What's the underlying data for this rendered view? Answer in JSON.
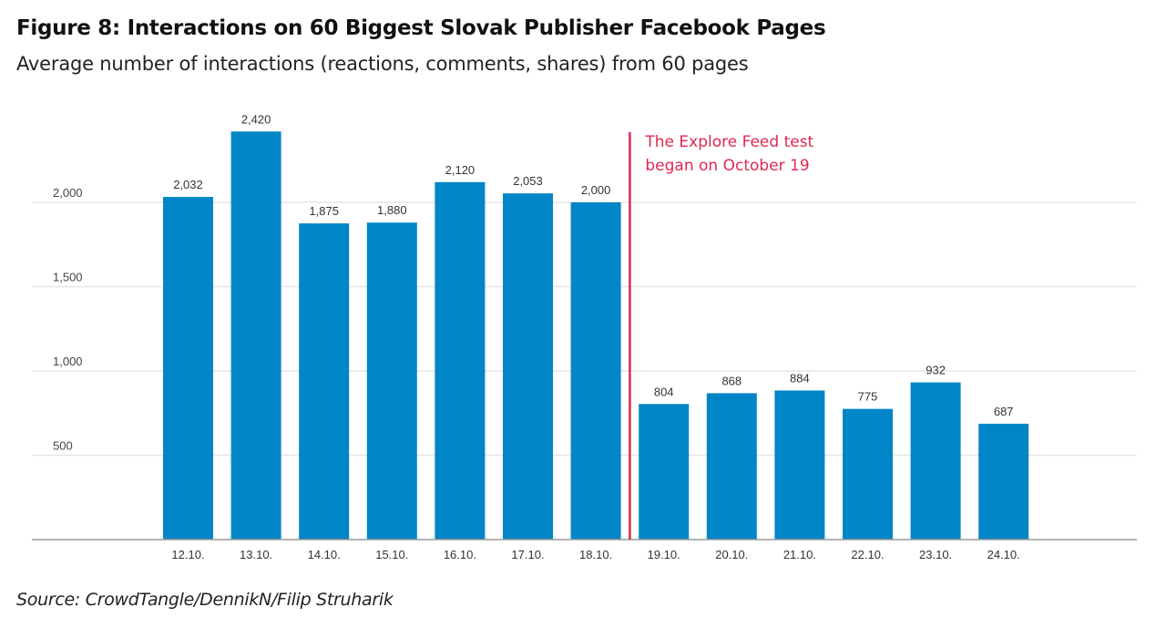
{
  "title": "Figure 8: Interactions on 60 Biggest Slovak Publisher Facebook Pages",
  "subtitle": "Average number of interactions (reactions, comments, shares) from 60 pages",
  "source": "Source: CrowdTangle/DennikN/Filip Struharik",
  "chart_data": {
    "type": "bar",
    "title": "Figure 8: Interactions on 60 Biggest Slovak Publisher Facebook Pages",
    "subtitle": "Average number of interactions (reactions, comments, shares) from 60 pages",
    "categories": [
      "12.10.",
      "13.10.",
      "14.10.",
      "15.10.",
      "16.10.",
      "17.10.",
      "18.10.",
      "19.10.",
      "20.10.",
      "21.10.",
      "22.10.",
      "23.10.",
      "24.10."
    ],
    "values": [
      2032,
      2420,
      1875,
      1880,
      2120,
      2053,
      2000,
      804,
      868,
      884,
      775,
      932,
      687
    ],
    "data_labels": [
      "2,032",
      "2,420",
      "1,875",
      "1,880",
      "2,120",
      "2,053",
      "2,000",
      "804",
      "868",
      "884",
      "775",
      "932",
      "687"
    ],
    "yticks": [
      500,
      1000,
      1500,
      2000
    ],
    "ytick_labels": [
      "500",
      "1,000",
      "1,500",
      "2,000"
    ],
    "ylim": [
      0,
      2500
    ],
    "grid": true,
    "xlabel": "",
    "ylabel": "",
    "bar_color": "#0086c6",
    "annotation": {
      "after_category": "18.10.",
      "lines": [
        "The Explore Feed test",
        "began on October 19"
      ],
      "color": "#e0284f"
    }
  }
}
